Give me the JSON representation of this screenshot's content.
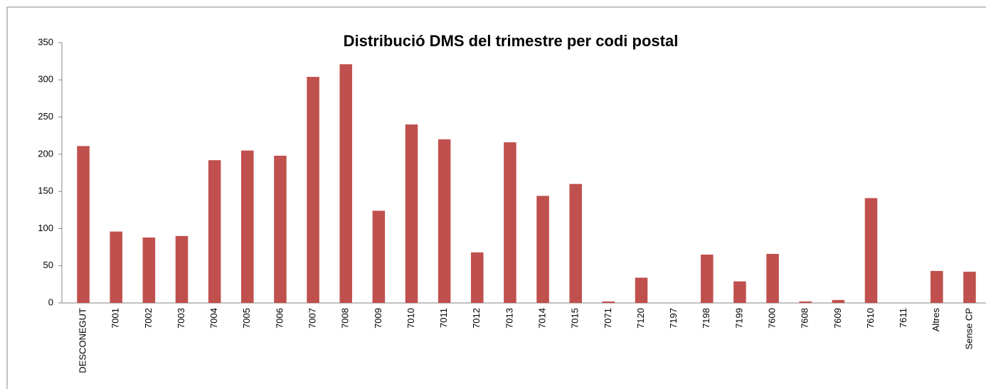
{
  "chart_data": {
    "type": "bar",
    "title": "Distribució DMS del trimestre per codi postal",
    "categories": [
      "DESCONEGUT",
      "7001",
      "7002",
      "7003",
      "7004",
      "7005",
      "7006",
      "7007",
      "7008",
      "7009",
      "7010",
      "7011",
      "7012",
      "7013",
      "7014",
      "7015",
      "7071",
      "7120",
      "7197",
      "7198",
      "7199",
      "7600",
      "7608",
      "7609",
      "7610",
      "7611",
      "Altres",
      "Sense CP"
    ],
    "values": [
      211,
      96,
      88,
      90,
      192,
      205,
      198,
      304,
      321,
      124,
      240,
      220,
      68,
      216,
      144,
      160,
      2,
      34,
      0,
      65,
      29,
      66,
      2,
      4,
      141,
      0,
      43,
      42
    ],
    "color": "#c0504d",
    "ylim": [
      0,
      350
    ],
    "yticks": [
      0,
      50,
      100,
      150,
      200,
      250,
      300,
      350
    ],
    "grid": false
  }
}
